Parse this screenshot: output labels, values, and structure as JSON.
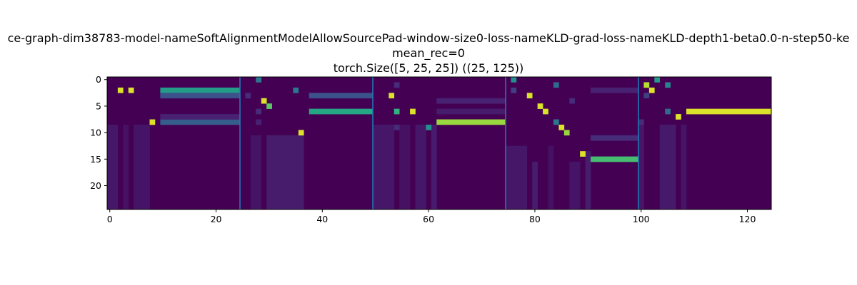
{
  "chart_data": {
    "type": "heatmap",
    "colormap": "viridis",
    "title_lines": [
      "ce-graph-dim38783-model-nameSoftAlignmentModelAllowSourcePad-window-size0-loss-nameKLD-grad-loss-nameKLD-depth1-beta0.0-n-step50-ke",
      "mean_rec=0",
      "torch.Size([5, 25, 25]) ((25, 125))"
    ],
    "xlim": [
      -0.5,
      124.5
    ],
    "ylim": [
      24.5,
      -0.5
    ],
    "x_ticks": [
      0,
      20,
      40,
      60,
      80,
      100,
      120
    ],
    "y_ticks": [
      0,
      5,
      10,
      15,
      20
    ],
    "n_rows": 25,
    "n_cols": 125,
    "vertical_lines_x": [
      24.5,
      49.5,
      74.5,
      99.5
    ],
    "vertical_line_color": "#1f77b4",
    "background_value": 0.0,
    "cells": [
      {
        "x": 2,
        "y": 2,
        "v": 0.95
      },
      {
        "x": 4,
        "y": 2,
        "v": 0.95
      },
      {
        "x": 8,
        "y": 8,
        "v": 0.95
      },
      {
        "x": 28,
        "y": 0,
        "v": 0.4
      },
      {
        "x": 29,
        "y": 4,
        "v": 0.95
      },
      {
        "x": 30,
        "y": 5,
        "v": 0.75
      },
      {
        "x": 35,
        "y": 2,
        "v": 0.4
      },
      {
        "x": 36,
        "y": 10,
        "v": 0.95
      },
      {
        "x": 28,
        "y": 6,
        "v": 0.15
      },
      {
        "x": 26,
        "y": 3,
        "v": 0.15
      },
      {
        "x": 28,
        "y": 8,
        "v": 0.12
      },
      {
        "x": 53,
        "y": 3,
        "v": 0.95
      },
      {
        "x": 54,
        "y": 6,
        "v": 0.65
      },
      {
        "x": 57,
        "y": 6,
        "v": 0.95
      },
      {
        "x": 60,
        "y": 9,
        "v": 0.5
      },
      {
        "x": 54,
        "y": 1,
        "v": 0.15
      },
      {
        "x": 54,
        "y": 9,
        "v": 0.15
      },
      {
        "x": 76,
        "y": 0,
        "v": 0.5
      },
      {
        "x": 79,
        "y": 3,
        "v": 0.95
      },
      {
        "x": 81,
        "y": 5,
        "v": 0.95
      },
      {
        "x": 82,
        "y": 6,
        "v": 0.95
      },
      {
        "x": 84,
        "y": 8,
        "v": 0.4
      },
      {
        "x": 85,
        "y": 9,
        "v": 0.95
      },
      {
        "x": 86,
        "y": 10,
        "v": 0.85
      },
      {
        "x": 89,
        "y": 14,
        "v": 0.95
      },
      {
        "x": 84,
        "y": 1,
        "v": 0.35
      },
      {
        "x": 76,
        "y": 2,
        "v": 0.2
      },
      {
        "x": 87,
        "y": 4,
        "v": 0.15
      },
      {
        "x": 101,
        "y": 1,
        "v": 0.9
      },
      {
        "x": 102,
        "y": 2,
        "v": 0.95
      },
      {
        "x": 103,
        "y": 0,
        "v": 0.55
      },
      {
        "x": 105,
        "y": 1,
        "v": 0.45
      },
      {
        "x": 105,
        "y": 6,
        "v": 0.35
      },
      {
        "x": 107,
        "y": 7,
        "v": 0.95
      },
      {
        "x": 101,
        "y": 3,
        "v": 0.2
      },
      {
        "x": 100,
        "y": 8,
        "v": 0.15
      }
    ],
    "bars": [
      {
        "x0": 10,
        "x1": 24,
        "y": 2,
        "v": 0.55
      },
      {
        "x0": 10,
        "x1": 24,
        "y": 3,
        "v": 0.25
      },
      {
        "x0": 10,
        "x1": 24,
        "y": 8,
        "v": 0.3
      },
      {
        "x0": 10,
        "x1": 24,
        "y": 7,
        "v": 0.12
      },
      {
        "x0": 38,
        "x1": 49,
        "y": 3,
        "v": 0.25
      },
      {
        "x0": 38,
        "x1": 49,
        "y": 6,
        "v": 0.6
      },
      {
        "x0": 62,
        "x1": 74,
        "y": 8,
        "v": 0.85
      },
      {
        "x0": 62,
        "x1": 74,
        "y": 4,
        "v": 0.12
      },
      {
        "x0": 62,
        "x1": 74,
        "y": 6,
        "v": 0.1
      },
      {
        "x0": 91,
        "x1": 99,
        "y": 15,
        "v": 0.7
      },
      {
        "x0": 91,
        "x1": 99,
        "y": 11,
        "v": 0.15
      },
      {
        "x0": 91,
        "x1": 99,
        "y": 2,
        "v": 0.12
      },
      {
        "x0": 109,
        "x1": 124,
        "y": 6,
        "v": 0.95
      }
    ],
    "faint_columns": [
      {
        "x0": 0,
        "x1": 1,
        "y0": 9,
        "y1": 24,
        "v": 0.08
      },
      {
        "x0": 3,
        "x1": 3,
        "y0": 9,
        "y1": 24,
        "v": 0.06
      },
      {
        "x0": 5,
        "x1": 7,
        "y0": 9,
        "y1": 24,
        "v": 0.07
      },
      {
        "x0": 27,
        "x1": 28,
        "y0": 11,
        "y1": 24,
        "v": 0.07
      },
      {
        "x0": 30,
        "x1": 36,
        "y0": 11,
        "y1": 24,
        "v": 0.1
      },
      {
        "x0": 50,
        "x1": 53,
        "y0": 9,
        "y1": 24,
        "v": 0.08
      },
      {
        "x0": 55,
        "x1": 56,
        "y0": 9,
        "y1": 24,
        "v": 0.06
      },
      {
        "x0": 58,
        "x1": 59,
        "y0": 9,
        "y1": 24,
        "v": 0.08
      },
      {
        "x0": 61,
        "x1": 61,
        "y0": 9,
        "y1": 24,
        "v": 0.1
      },
      {
        "x0": 75,
        "x1": 78,
        "y0": 13,
        "y1": 24,
        "v": 0.08
      },
      {
        "x0": 80,
        "x1": 80,
        "y0": 16,
        "y1": 24,
        "v": 0.1
      },
      {
        "x0": 83,
        "x1": 83,
        "y0": 13,
        "y1": 24,
        "v": 0.06
      },
      {
        "x0": 87,
        "x1": 88,
        "y0": 16,
        "y1": 24,
        "v": 0.07
      },
      {
        "x0": 90,
        "x1": 90,
        "y0": 14,
        "y1": 24,
        "v": 0.1
      },
      {
        "x0": 100,
        "x1": 100,
        "y0": 9,
        "y1": 24,
        "v": 0.08
      },
      {
        "x0": 104,
        "x1": 106,
        "y0": 9,
        "y1": 24,
        "v": 0.09
      },
      {
        "x0": 108,
        "x1": 108,
        "y0": 9,
        "y1": 24,
        "v": 0.07
      }
    ]
  }
}
